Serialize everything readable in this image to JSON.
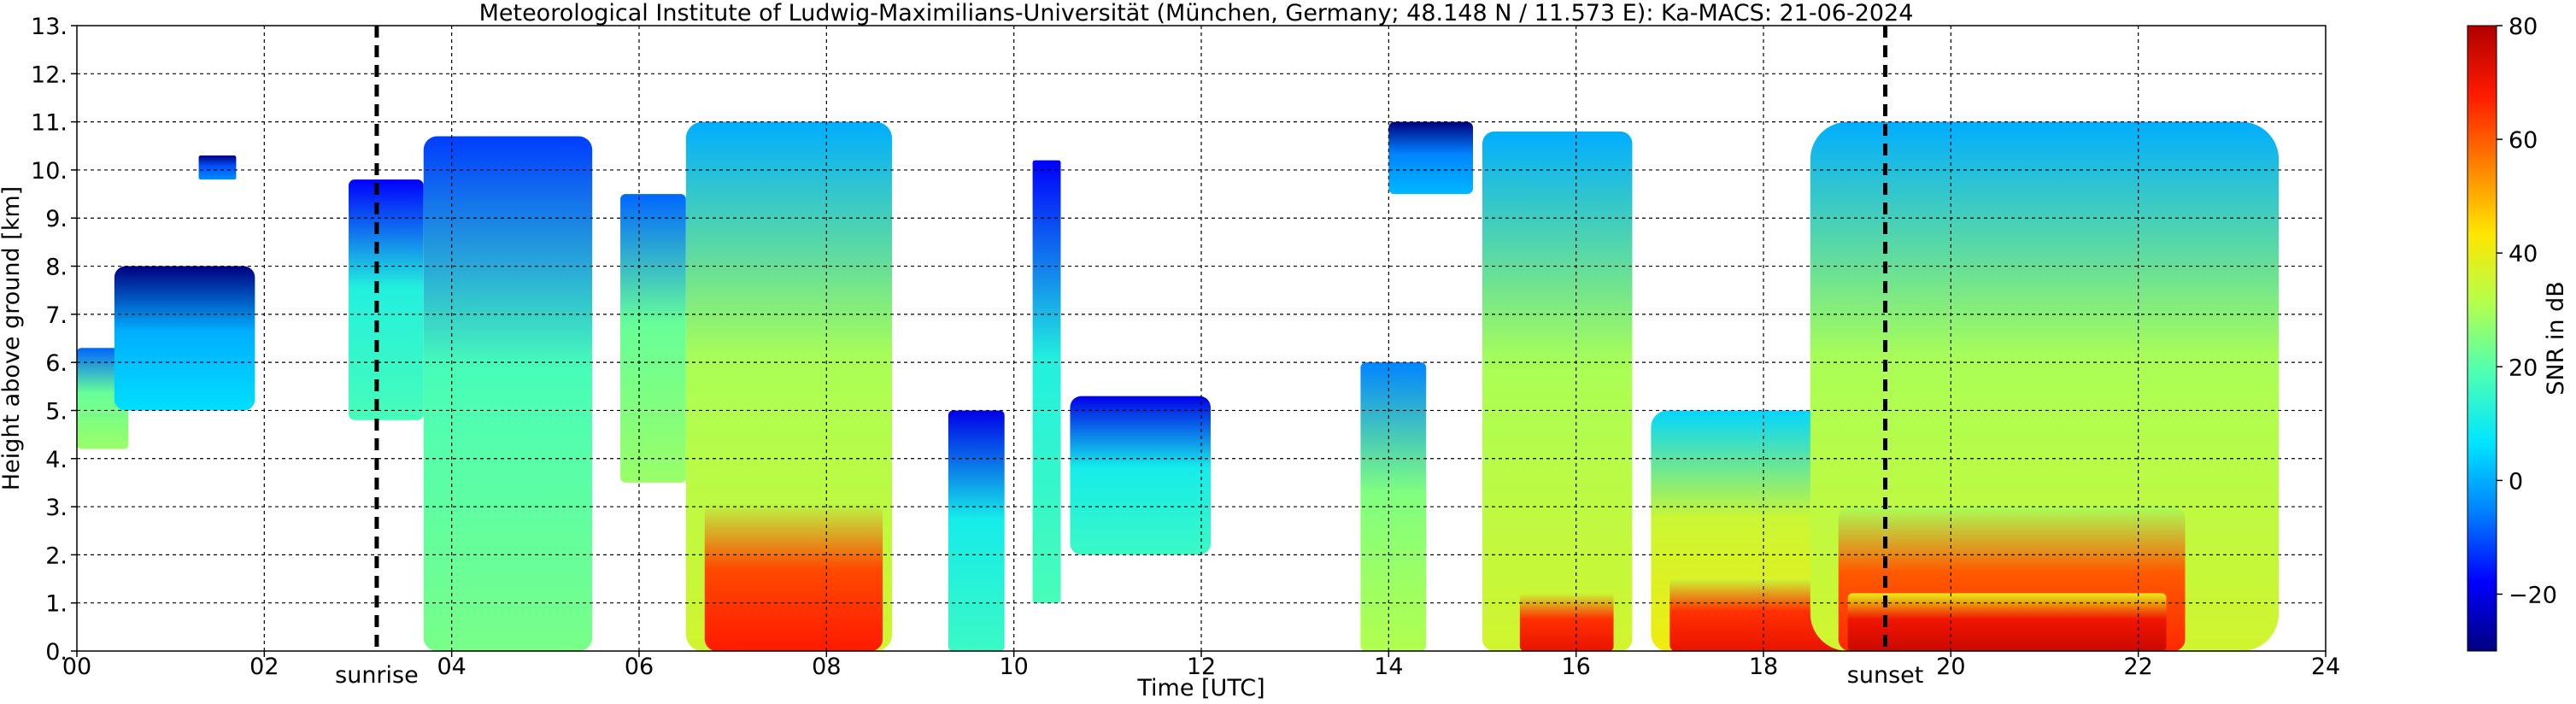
{
  "chart_data": {
    "type": "heatmap",
    "title": "Meteorological Institute of Ludwig-Maximilians-Universität (München, Germany; 48.148 N / 11.573 E):    Ka-MACS: 21-06-2024",
    "xlabel": "Time [UTC]",
    "ylabel": "Height above ground [km]",
    "xlim": [
      0,
      24
    ],
    "ylim": [
      0,
      13
    ],
    "grid": true,
    "x_ticks": [
      0,
      2,
      4,
      6,
      8,
      10,
      12,
      14,
      16,
      18,
      20,
      22,
      24
    ],
    "x_tick_labels": [
      "00",
      "02",
      "04",
      "06",
      "08",
      "10",
      "12",
      "14",
      "16",
      "18",
      "20",
      "22",
      "24"
    ],
    "y_ticks": [
      0,
      1,
      2,
      3,
      4,
      5,
      6,
      7,
      8,
      9,
      10,
      11,
      12,
      13
    ],
    "y_tick_labels": [
      "0.",
      "1.",
      "2.",
      "3.",
      "4.",
      "5.",
      "6.",
      "7.",
      "8.",
      "9.",
      "10.",
      "11.",
      "12.",
      "13."
    ],
    "annotations": [
      {
        "text": "sunrise",
        "x": 3.2
      },
      {
        "text": "sunset",
        "x": 19.3
      }
    ],
    "colorbar": {
      "label": "SNR in dB",
      "range": [
        -30,
        80
      ],
      "ticks": [
        -20,
        0,
        20,
        40,
        60,
        80
      ],
      "tick_labels": [
        "−20",
        "0",
        "20",
        "40",
        "60",
        "80"
      ],
      "colors": [
        "#00007f",
        "#0000ff",
        "#0080ff",
        "#00e5ff",
        "#4dffb3",
        "#b3ff4d",
        "#ffe600",
        "#ff8000",
        "#ff1a00",
        "#b00000"
      ]
    },
    "cloud_regions": [
      {
        "t0": 0.0,
        "t1": 0.55,
        "h0": 4.2,
        "h1": 6.3,
        "snr": 22
      },
      {
        "t0": 0.4,
        "t1": 1.9,
        "h0": 5.0,
        "h1": 8.0,
        "snr": 0
      },
      {
        "t0": 1.3,
        "t1": 1.7,
        "h0": 9.8,
        "h1": 10.3,
        "snr": -10
      },
      {
        "t0": 2.9,
        "t1": 3.7,
        "h0": 4.8,
        "h1": 9.8,
        "snr": 12
      },
      {
        "t0": 3.7,
        "t1": 5.5,
        "h0": 0.0,
        "h1": 10.7,
        "snr": 18
      },
      {
        "t0": 5.8,
        "t1": 6.5,
        "h0": 3.5,
        "h1": 9.5,
        "snr": 22
      },
      {
        "t0": 6.5,
        "t1": 8.7,
        "h0": 0.0,
        "h1": 11.0,
        "snr": 30
      },
      {
        "t0": 6.7,
        "t1": 8.6,
        "h0": 0.0,
        "h1": 3.1,
        "snr": 62
      },
      {
        "t0": 9.3,
        "t1": 9.9,
        "h0": 0.0,
        "h1": 5.0,
        "snr": 10
      },
      {
        "t0": 10.2,
        "t1": 10.5,
        "h0": 1.0,
        "h1": 10.2,
        "snr": 12
      },
      {
        "t0": 10.6,
        "t1": 12.1,
        "h0": 2.0,
        "h1": 5.3,
        "snr": 10
      },
      {
        "t0": 13.7,
        "t1": 14.4,
        "h0": 0.0,
        "h1": 6.0,
        "snr": 25
      },
      {
        "t0": 14.0,
        "t1": 14.9,
        "h0": 9.5,
        "h1": 11.0,
        "snr": -5
      },
      {
        "t0": 15.0,
        "t1": 16.6,
        "h0": 0.0,
        "h1": 10.8,
        "snr": 30
      },
      {
        "t0": 15.4,
        "t1": 16.4,
        "h0": 0.0,
        "h1": 1.2,
        "snr": 65
      },
      {
        "t0": 16.8,
        "t1": 19.0,
        "h0": 0.0,
        "h1": 5.0,
        "snr": 35
      },
      {
        "t0": 17.0,
        "t1": 19.0,
        "h0": 0.0,
        "h1": 1.5,
        "snr": 65
      },
      {
        "t0": 18.5,
        "t1": 23.5,
        "h0": 0.0,
        "h1": 11.0,
        "snr": 30
      },
      {
        "t0": 18.8,
        "t1": 22.5,
        "h0": 0.0,
        "h1": 3.0,
        "snr": 60
      },
      {
        "t0": 18.9,
        "t1": 22.3,
        "h0": 0.0,
        "h1": 1.2,
        "snr": 70
      }
    ]
  }
}
